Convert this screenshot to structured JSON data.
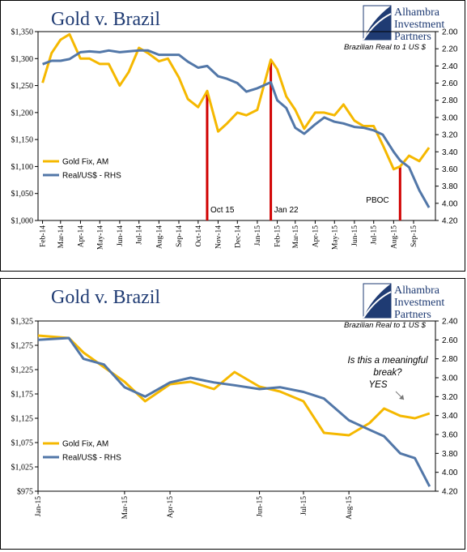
{
  "logo": {
    "line1": "Alhambra",
    "line2": "Investment",
    "line3": "Partners"
  },
  "chart_data": [
    {
      "type": "line",
      "title": "Gold v. Brazil",
      "right_axis_label": "Brazilian Real to 1 US $",
      "x_ticks": [
        "Feb-14",
        "Mar-14",
        "Apr-14",
        "May-14",
        "Jun-14",
        "Jul-14",
        "Aug-14",
        "Sep-14",
        "Oct-14",
        "Nov-14",
        "Dec-14",
        "Jan-15",
        "Feb-15",
        "Mar-15",
        "Apr-15",
        "May-15",
        "Jun-15",
        "Jul-15",
        "Aug-15",
        "Sep-15"
      ],
      "y_left_ticks": [
        "$1,350",
        "$1,300",
        "$1,250",
        "$1,200",
        "$1,150",
        "$1,100",
        "$1,050",
        "$1,000"
      ],
      "y_right_ticks": [
        "2.00",
        "2.20",
        "2.40",
        "2.60",
        "2.80",
        "3.00",
        "3.20",
        "3.40",
        "3.60",
        "3.80",
        "4.00",
        "4.20"
      ],
      "ylim_left": [
        1000,
        1350
      ],
      "ylim_right_inverted": [
        2.0,
        4.2
      ],
      "colors": {
        "gold": "#f5b800",
        "real": "#5277a8",
        "marker": "#d00000"
      },
      "legend": [
        "Gold Fix, AM",
        "Real/US$ - RHS"
      ],
      "legend_position": "left",
      "annotations": [
        {
          "label": "Oct 15",
          "date": "2014-10-15"
        },
        {
          "label": "Jan 22",
          "date": "2015-01-22"
        },
        {
          "label": "PBOC",
          "date": "2015-08-11"
        }
      ],
      "series": [
        {
          "name": "Gold Fix, AM",
          "axis": "left",
          "x": [
            "2014-02-01",
            "2014-02-15",
            "2014-03-01",
            "2014-03-15",
            "2014-04-01",
            "2014-04-15",
            "2014-05-01",
            "2014-05-15",
            "2014-06-01",
            "2014-06-15",
            "2014-07-01",
            "2014-07-15",
            "2014-08-01",
            "2014-08-15",
            "2014-09-01",
            "2014-09-15",
            "2014-10-01",
            "2014-10-15",
            "2014-11-01",
            "2014-11-15",
            "2014-12-01",
            "2014-12-15",
            "2015-01-01",
            "2015-01-22",
            "2015-02-01",
            "2015-02-15",
            "2015-03-01",
            "2015-03-15",
            "2015-04-01",
            "2015-04-15",
            "2015-05-01",
            "2015-05-15",
            "2015-06-01",
            "2015-06-15",
            "2015-07-01",
            "2015-07-15",
            "2015-08-01",
            "2015-08-11",
            "2015-08-25",
            "2015-09-10",
            "2015-09-25"
          ],
          "values": [
            1255,
            1310,
            1335,
            1345,
            1300,
            1300,
            1290,
            1290,
            1250,
            1275,
            1320,
            1310,
            1295,
            1300,
            1265,
            1225,
            1210,
            1240,
            1165,
            1180,
            1200,
            1195,
            1205,
            1298,
            1280,
            1230,
            1205,
            1170,
            1200,
            1200,
            1195,
            1215,
            1185,
            1175,
            1175,
            1140,
            1095,
            1100,
            1120,
            1110,
            1135
          ]
        },
        {
          "name": "Real/US$ - RHS",
          "axis": "right",
          "x": [
            "2014-02-01",
            "2014-02-15",
            "2014-03-01",
            "2014-03-15",
            "2014-04-01",
            "2014-04-15",
            "2014-05-01",
            "2014-05-15",
            "2014-06-01",
            "2014-06-15",
            "2014-07-01",
            "2014-07-15",
            "2014-08-01",
            "2014-08-15",
            "2014-09-01",
            "2014-09-15",
            "2014-10-01",
            "2014-10-15",
            "2014-11-01",
            "2014-11-15",
            "2014-12-01",
            "2014-12-15",
            "2015-01-01",
            "2015-01-22",
            "2015-02-01",
            "2015-02-15",
            "2015-03-01",
            "2015-03-15",
            "2015-04-01",
            "2015-04-15",
            "2015-05-01",
            "2015-05-15",
            "2015-06-01",
            "2015-06-15",
            "2015-07-01",
            "2015-07-15",
            "2015-08-01",
            "2015-08-11",
            "2015-08-25",
            "2015-09-10",
            "2015-09-25"
          ],
          "values": [
            2.38,
            2.34,
            2.34,
            2.32,
            2.24,
            2.23,
            2.24,
            2.22,
            2.24,
            2.23,
            2.22,
            2.22,
            2.27,
            2.27,
            2.27,
            2.35,
            2.42,
            2.4,
            2.52,
            2.55,
            2.6,
            2.7,
            2.66,
            2.59,
            2.8,
            2.89,
            3.12,
            3.19,
            3.08,
            3.0,
            3.05,
            3.07,
            3.11,
            3.12,
            3.15,
            3.2,
            3.4,
            3.5,
            3.58,
            3.85,
            4.05
          ]
        }
      ]
    },
    {
      "type": "line",
      "title": "Gold v. Brazil",
      "right_axis_label": "Brazilian Real to 1 US $",
      "x_ticks": [
        "Jan-15",
        "Mar-15",
        "Apr-15",
        "Jun-15",
        "Jul-15",
        "Aug-15"
      ],
      "y_left_ticks": [
        "$1,325",
        "$1,275",
        "$1,225",
        "$1,175",
        "$1,125",
        "$1,075",
        "$1,025",
        "$975"
      ],
      "y_right_ticks": [
        "2.40",
        "2.60",
        "2.80",
        "3.00",
        "3.20",
        "3.40",
        "3.60",
        "3.80",
        "4.00",
        "4.20"
      ],
      "ylim_left": [
        975,
        1325
      ],
      "ylim_right_inverted": [
        2.4,
        4.2
      ],
      "colors": {
        "gold": "#f5b800",
        "real": "#5277a8"
      },
      "legend": [
        "Gold Fix, AM",
        "Real/US$ - RHS"
      ],
      "legend_position": "left",
      "annotation_text": [
        "Is this a meaningful",
        "break?",
        "YES"
      ],
      "series": [
        {
          "name": "Gold Fix, AM",
          "axis": "left",
          "x": [
            "2015-01-01",
            "2015-01-22",
            "2015-02-01",
            "2015-02-15",
            "2015-03-01",
            "2015-03-15",
            "2015-04-01",
            "2015-04-15",
            "2015-05-01",
            "2015-05-15",
            "2015-06-01",
            "2015-06-15",
            "2015-07-01",
            "2015-07-15",
            "2015-08-01",
            "2015-08-15",
            "2015-08-25",
            "2015-09-05",
            "2015-09-15",
            "2015-09-25"
          ],
          "values": [
            1295,
            1290,
            1260,
            1230,
            1200,
            1160,
            1195,
            1200,
            1185,
            1220,
            1190,
            1180,
            1160,
            1095,
            1090,
            1115,
            1145,
            1130,
            1125,
            1135
          ]
        },
        {
          "name": "Real/US$ - RHS",
          "axis": "right",
          "x": [
            "2015-01-01",
            "2015-01-22",
            "2015-02-01",
            "2015-02-15",
            "2015-03-01",
            "2015-03-15",
            "2015-04-01",
            "2015-04-15",
            "2015-05-01",
            "2015-05-15",
            "2015-06-01",
            "2015-06-15",
            "2015-07-01",
            "2015-07-15",
            "2015-08-01",
            "2015-08-15",
            "2015-08-25",
            "2015-09-05",
            "2015-09-15",
            "2015-09-25"
          ],
          "values": [
            2.6,
            2.58,
            2.8,
            2.86,
            3.1,
            3.2,
            3.05,
            3.0,
            3.05,
            3.08,
            3.12,
            3.1,
            3.15,
            3.22,
            3.45,
            3.55,
            3.62,
            3.8,
            3.85,
            4.15
          ]
        }
      ]
    }
  ]
}
